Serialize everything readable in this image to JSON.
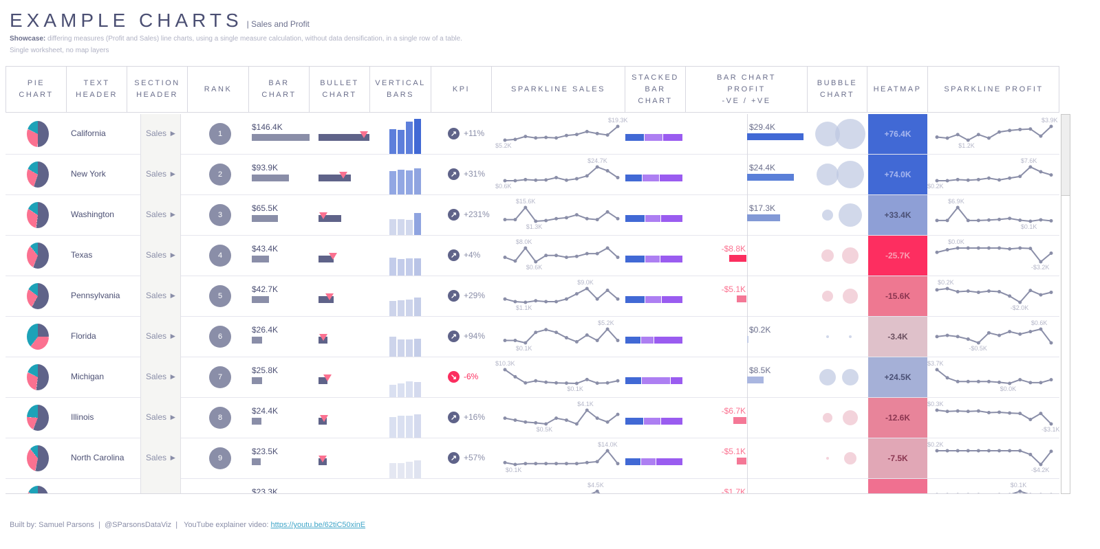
{
  "title": "EXAMPLE CHARTS",
  "subtitle": "| Sales and Profit",
  "description": {
    "label": "Showcase:",
    "text": " differing measures (Profit and Sales) line charts, using a single measure calculation, without data densification, in a single row of a table.",
    "line2": "Single worksheet, no map layers"
  },
  "columns": [
    "PIE\nCHART",
    "TEXT\nHEADER",
    "SECTION\nHEADER",
    "RANK",
    "BAR\nCHART",
    "BULLET\nCHART",
    "VERTICAL\nBARS",
    "KPI",
    "SPARKLINE SALES",
    "STACKED\nBAR\nCHART",
    "BAR CHART\nPROFIT\n-VE / +VE",
    "BUBBLE\nCHART",
    "HEATMAP",
    "SPARKLINE PROFIT"
  ],
  "section_label": "Sales ►",
  "colors": {
    "dark": "#5f6389",
    "pink": "#fb7190",
    "teal": "#1da2b8",
    "blue": "#4169d5",
    "lilac": "#ad7ff2",
    "purple": "#9a5cf0",
    "negative": "#fb2e5f"
  },
  "rows": [
    {
      "state": "California",
      "rank": "1",
      "sales": 146.4,
      "sales_label": "$146.4K",
      "target": 130,
      "pie": [
        0.5,
        0.32,
        0.18
      ],
      "vbars": [
        0.7,
        0.68,
        0.9,
        0.98
      ],
      "vbar_color": "#4169d5",
      "kpi": "+11%",
      "kpi_dir": "up",
      "spark_sales": [
        5.2,
        6,
        9,
        7.5,
        8,
        7.5,
        10,
        11,
        14,
        12,
        10.5,
        19.3
      ],
      "sales_max": "$19.3K",
      "sales_min": "$5.2K",
      "stack": [
        0.33,
        0.33,
        0.34
      ],
      "profit": 29.4,
      "profit_label": "$29.4K",
      "profit_color": "#4169d5",
      "bubbles": [
        18,
        22
      ],
      "heat": "+76.4K",
      "heat_bg": "#4169d5",
      "heat_fg": "#a9b8ef",
      "spark_profit": [
        1.8,
        1.6,
        2.3,
        1.2,
        2.3,
        1.6,
        2.8,
        3.1,
        3.3,
        3.4,
        2,
        3.9
      ],
      "profit_max": "$3.9K",
      "profit_min": "$1.2K"
    },
    {
      "state": "New York",
      "rank": "2",
      "sales": 93.9,
      "sales_label": "$93.9K",
      "target": 71,
      "pie": [
        0.55,
        0.28,
        0.17
      ],
      "vbars": [
        0.65,
        0.7,
        0.68,
        0.74
      ],
      "vbar_color": "#7f98de",
      "kpi": "+31%",
      "kpi_dir": "up",
      "spark_sales": [
        0.6,
        0.6,
        2.5,
        1.5,
        2,
        6,
        1.5,
        4,
        9,
        24.7,
        18,
        6
      ],
      "sales_max": "$24.7K",
      "sales_min": "$0.6K",
      "stack": [
        0.3,
        0.29,
        0.41
      ],
      "profit": 24.4,
      "profit_label": "$24.4K",
      "profit_color": "#5a7fd8",
      "bubbles": [
        16,
        20
      ],
      "heat": "+74.0K",
      "heat_bg": "#4169d5",
      "heat_fg": "#a9b8ef",
      "spark_profit": [
        0.2,
        0.2,
        0.8,
        0.5,
        0.8,
        1.6,
        0.6,
        1.6,
        2.5,
        7.6,
        5,
        3.3
      ],
      "profit_max": "$7.6K",
      "profit_min": "$0.2K"
    },
    {
      "state": "Washington",
      "rank": "3",
      "sales": 65.5,
      "sales_label": "$65.5K",
      "target": 14,
      "pie": [
        0.52,
        0.32,
        0.16
      ],
      "vbars": [
        0.45,
        0.44,
        0.42,
        0.62
      ],
      "vbar_color": "#c9d1ea",
      "kpi": "+231%",
      "kpi_dir": "up",
      "spark_sales": [
        3,
        3,
        15.6,
        1.3,
        2,
        4,
        5,
        8,
        4,
        3,
        11,
        4
      ],
      "sales_max": "$15.6K",
      "sales_min": "$1.3K",
      "stack": [
        0.34,
        0.28,
        0.38
      ],
      "profit": 17.3,
      "profit_label": "$17.3K",
      "profit_color": "#8299d6",
      "bubbles": [
        8,
        17
      ],
      "heat": "+33.4K",
      "heat_bg": "#8e9fd6",
      "heat_fg": "#4b5075",
      "spark_profit": [
        0.5,
        0.5,
        6.9,
        0.5,
        0.5,
        0.7,
        1,
        1.5,
        0.6,
        0.1,
        0.8,
        0.3
      ],
      "profit_max": "$6.9K",
      "profit_min": "$0.1K"
    },
    {
      "state": "Texas",
      "rank": "4",
      "sales": 43.4,
      "sales_label": "$43.4K",
      "target": 41,
      "pie": [
        0.56,
        0.33,
        0.11
      ],
      "vbars": [
        0.5,
        0.46,
        0.48,
        0.48
      ],
      "vbar_color": "#b8c3e6",
      "kpi": "+4%",
      "kpi_dir": "up",
      "spark_sales": [
        3,
        1,
        8,
        0.6,
        4,
        4,
        3,
        3.5,
        5,
        5,
        8,
        3
      ],
      "sales_max": "$8.0K",
      "sales_min": "$0.6K",
      "stack": [
        0.35,
        0.26,
        0.39
      ],
      "profit": -8.8,
      "profit_label": "-$8.8K",
      "profit_color": "#fb2e5f",
      "bubbles": [
        9,
        12
      ],
      "heat": "-25.7K",
      "heat_bg": "#fd2e60",
      "heat_fg": "#f9a0b4",
      "spark_profit": [
        -1,
        -0.4,
        0,
        0,
        0,
        0,
        0,
        -0.2,
        0,
        -0.1,
        -3.2,
        -1.2
      ],
      "profit_max": "$0.0K",
      "profit_min": "-$3.2K"
    },
    {
      "state": "Pennsylvania",
      "rank": "5",
      "sales": 42.7,
      "sales_label": "$42.7K",
      "target": 31,
      "pie": [
        0.58,
        0.27,
        0.15
      ],
      "vbars": [
        0.42,
        0.44,
        0.46,
        0.52
      ],
      "vbar_color": "#c4cde8",
      "kpi": "+29%",
      "kpi_dir": "up",
      "spark_sales": [
        3,
        1.5,
        1.1,
        2,
        1.5,
        1.5,
        3,
        6,
        9,
        3,
        8,
        3
      ],
      "sales_max": "$9.0K",
      "sales_min": "$1.1K",
      "stack": [
        0.35,
        0.28,
        0.37
      ],
      "profit": -5.1,
      "profit_label": "-$5.1K",
      "profit_color": "#f47896",
      "bubbles": [
        8,
        11
      ],
      "heat": "-15.6K",
      "heat_bg": "#ee7891",
      "heat_fg": "#8a3550",
      "spark_profit": [
        0,
        0.2,
        -0.3,
        -0.2,
        -0.4,
        -0.2,
        -0.3,
        -1,
        -2,
        -0.1,
        -0.8,
        -0.4
      ],
      "profit_max": "$0.2K",
      "profit_min": "-$2.0K"
    },
    {
      "state": "Florida",
      "rank": "6",
      "sales": 26.4,
      "sales_label": "$26.4K",
      "target": 14,
      "pie": [
        0.25,
        0.35,
        0.4
      ],
      "vbars": [
        0.55,
        0.48,
        0.48,
        0.5
      ],
      "vbar_color": "#c4cde8",
      "kpi": "+94%",
      "kpi_dir": "up",
      "spark_sales": [
        1,
        1,
        0.1,
        4,
        5,
        4,
        2,
        0.5,
        3,
        1,
        5.2,
        1
      ],
      "sales_max": "$5.2K",
      "sales_min": "$0.1K",
      "stack": [
        0.27,
        0.23,
        0.5
      ],
      "profit": 0.2,
      "profit_label": "$0.2K",
      "profit_color": "#c4cde8",
      "bubbles": [
        2,
        2
      ],
      "heat": "-3.4K",
      "heat_bg": "#dfc1ca",
      "heat_fg": "#6b5060",
      "spark_profit": [
        0,
        0.1,
        0,
        -0.2,
        -0.5,
        0.3,
        0.1,
        0.4,
        0.2,
        0.4,
        0.6,
        -0.5
      ],
      "profit_max": "$0.6K",
      "profit_min": "-$0.5K"
    },
    {
      "state": "Michigan",
      "rank": "7",
      "sales": 25.8,
      "sales_label": "$25.8K",
      "target": 26,
      "pie": [
        0.52,
        0.3,
        0.18
      ],
      "vbars": [
        0.35,
        0.38,
        0.45,
        0.43
      ],
      "vbar_color": "#d4daee",
      "kpi": "-6%",
      "kpi_dir": "down",
      "spark_sales": [
        10.3,
        5,
        0.5,
        2,
        1,
        0.5,
        0.3,
        0.1,
        3,
        0.3,
        0.5,
        2
      ],
      "sales_max": "$10.3K",
      "sales_min": "$0.1K",
      "stack": [
        0.29,
        0.49,
        0.22
      ],
      "profit": 8.5,
      "profit_label": "$8.5K",
      "profit_color": "#a9b6e0",
      "bubbles": [
        12,
        12
      ],
      "heat": "+24.5K",
      "heat_bg": "#a5b0d7",
      "heat_fg": "#4b5075",
      "spark_profit": [
        3.7,
        1.5,
        0.5,
        0.5,
        0.5,
        0.5,
        0.3,
        0,
        1,
        0.2,
        0.2,
        1
      ],
      "profit_max": "$3.7K",
      "profit_min": "$0.0K"
    },
    {
      "state": "Illinois",
      "rank": "8",
      "sales": 24.4,
      "sales_label": "$24.4K",
      "target": 16,
      "pie": [
        0.56,
        0.2,
        0.24
      ],
      "vbars": [
        0.58,
        0.62,
        0.62,
        0.66
      ],
      "vbar_color": "#d4daee",
      "kpi": "+16%",
      "kpi_dir": "up",
      "spark_sales": [
        2,
        1.5,
        1,
        0.8,
        0.5,
        2,
        1.5,
        0.5,
        4.1,
        2,
        1,
        3
      ],
      "sales_max": "$4.1K",
      "sales_min": "$0.5K",
      "stack": [
        0.32,
        0.3,
        0.38
      ],
      "profit": -6.7,
      "profit_label": "-$6.7K",
      "profit_color": "#f47896",
      "bubbles": [
        7,
        11
      ],
      "heat": "-12.6K",
      "heat_bg": "#e8849a",
      "heat_fg": "#8a3550",
      "spark_profit": [
        0.3,
        0,
        0.1,
        0,
        0.1,
        -0.3,
        -0.2,
        -0.4,
        -0.5,
        -2,
        -0.5,
        -3.1
      ],
      "profit_max": "$0.3K",
      "profit_min": "-$3.1K"
    },
    {
      "state": "North Carolina",
      "rank": "9",
      "sales": 23.5,
      "sales_label": "$23.5K",
      "target": 12,
      "pie": [
        0.53,
        0.36,
        0.11
      ],
      "vbars": [
        0.42,
        0.42,
        0.46,
        0.5
      ],
      "vbar_color": "#dfe3f0",
      "kpi": "+57%",
      "kpi_dir": "up",
      "spark_sales": [
        2,
        0.1,
        1,
        1,
        1,
        1,
        1,
        1,
        2,
        3,
        14,
        1
      ],
      "sales_max": "$14.0K",
      "sales_min": "$0.1K",
      "stack": [
        0.27,
        0.27,
        0.46
      ],
      "profit": -5.1,
      "profit_label": "-$5.1K",
      "profit_color": "#f47896",
      "bubbles": [
        2,
        9
      ],
      "heat": "-7.5K",
      "heat_bg": "#e1a7b6",
      "heat_fg": "#8a3550",
      "spark_profit": [
        0.2,
        0.2,
        0.2,
        0.2,
        0.2,
        0.2,
        0.2,
        0.2,
        0.2,
        -1,
        -4.2,
        0
      ],
      "profit_max": "$0.2K",
      "profit_min": "-$4.2K"
    },
    {
      "state": "",
      "rank": "",
      "sales": 23.3,
      "sales_label": "$23.3K",
      "target": 0,
      "pie": [
        0.55,
        0.3,
        0.15
      ],
      "vbars": [],
      "vbar_color": "#dfe3f0",
      "kpi": "",
      "kpi_dir": "down",
      "spark_sales": [
        0,
        0,
        0,
        0,
        0,
        1,
        2,
        0,
        3,
        4.5,
        1,
        0
      ],
      "sales_max": "$4.5K",
      "sales_min": "",
      "stack": [],
      "profit": -1.7,
      "profit_label": "-$1.7K",
      "profit_color": "#f47896",
      "bubbles": [
        6,
        6
      ],
      "heat": "",
      "heat_bg": "#f07090",
      "heat_fg": "#8a3550",
      "spark_profit": [
        0,
        0,
        0,
        0,
        0,
        -0.3,
        0,
        0,
        0.1,
        0,
        0,
        0
      ],
      "profit_max": "$0.1K",
      "profit_min": ""
    }
  ],
  "footer": {
    "text": "Built by: Samuel Parsons  |  @SParsonsDataViz  |   YouTube explainer video: ",
    "link": "https://youtu.be/62tiC50xinE"
  }
}
